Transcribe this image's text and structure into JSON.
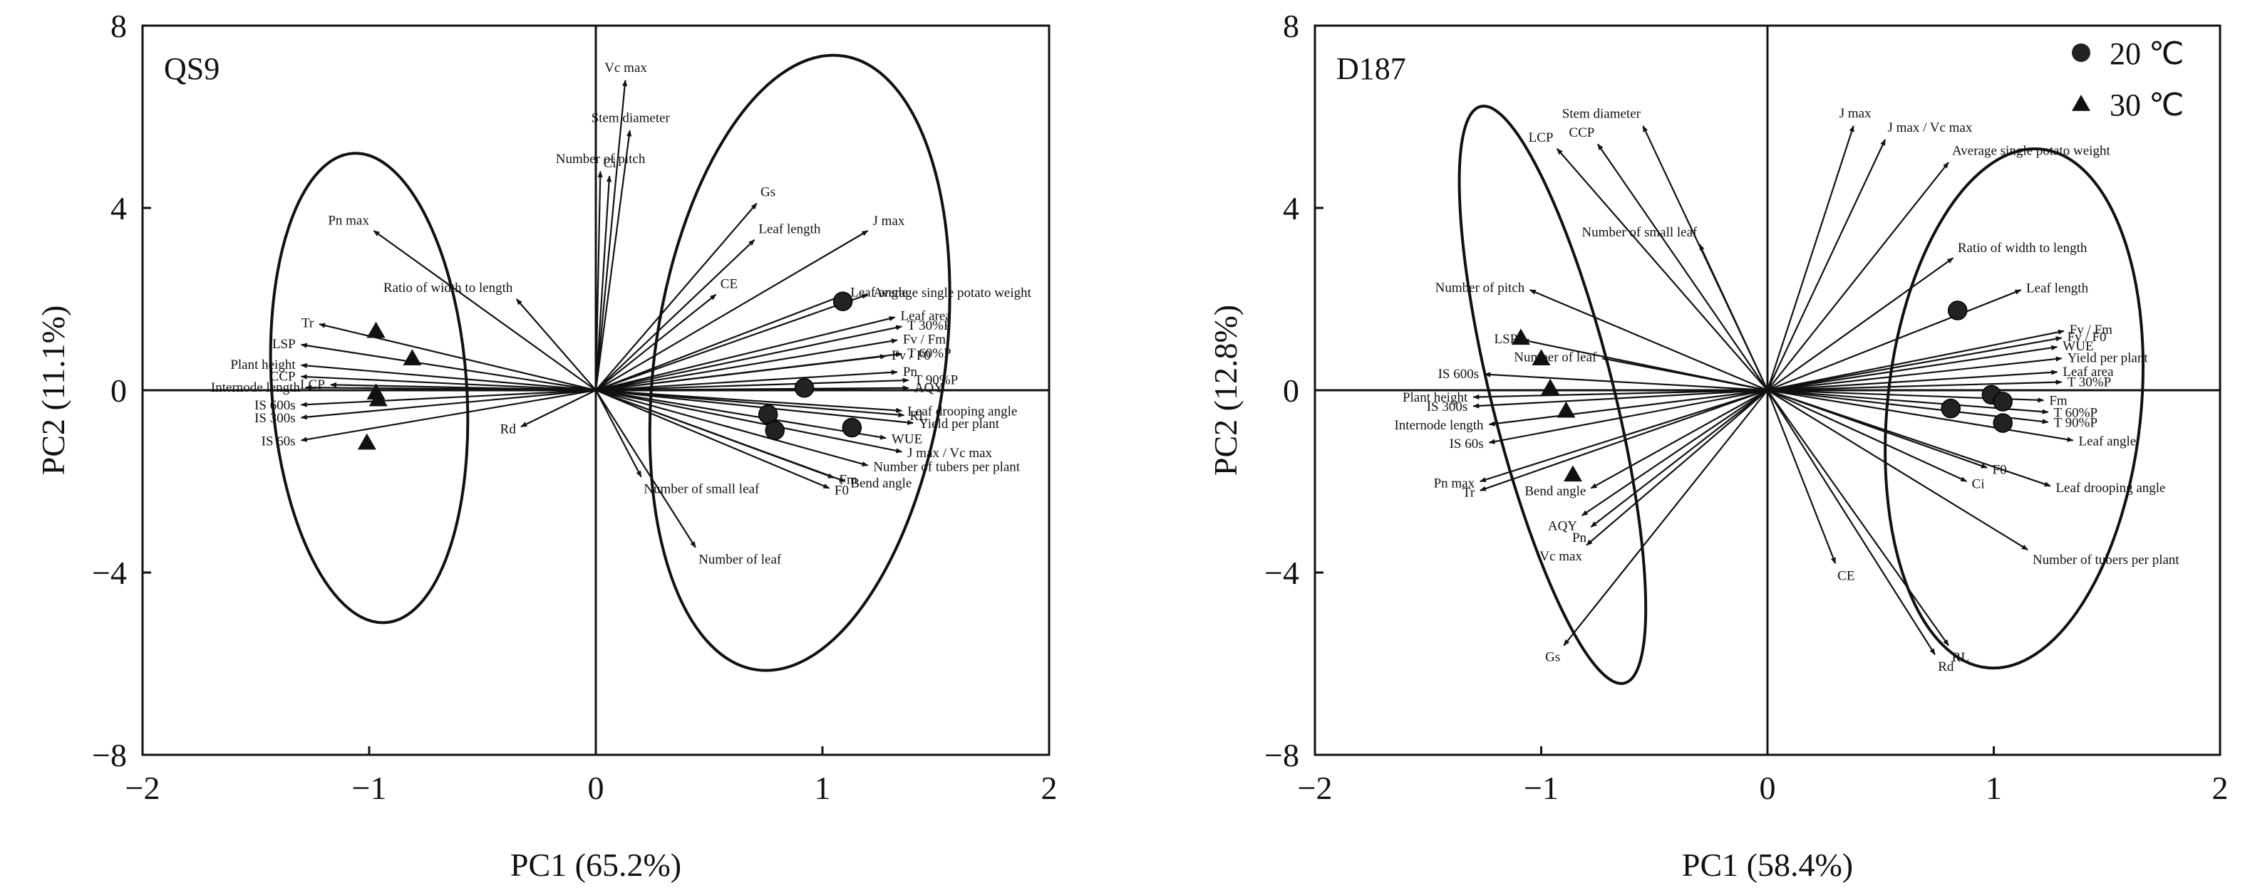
{
  "chart_data": [
    {
      "type": "scatter",
      "title": "QS9",
      "xlabel": "PC1 (65.2%)",
      "ylabel": "PC2 (11.1%)",
      "xlim": [
        -2,
        2
      ],
      "ylim": [
        -8,
        8
      ],
      "xticks": [
        -2,
        -1,
        0,
        1,
        2
      ],
      "yticks": [
        -8,
        -4,
        0,
        4,
        8
      ],
      "xtick_labels": [
        "−2",
        "−1",
        "0",
        "1",
        "2"
      ],
      "ytick_labels": [
        "−8",
        "−4",
        "0",
        "4",
        "8"
      ],
      "legend": null,
      "series": [
        {
          "name": "20 ℃",
          "marker": "circle",
          "points": [
            [
              1.09,
              1.95
            ],
            [
              0.92,
              0.05
            ],
            [
              0.76,
              -0.53
            ],
            [
              0.79,
              -0.88
            ],
            [
              1.13,
              -0.82
            ]
          ]
        },
        {
          "name": "30 ℃",
          "marker": "triangle",
          "points": [
            [
              -0.97,
              1.3
            ],
            [
              -0.81,
              0.7
            ],
            [
              -0.97,
              -0.05
            ],
            [
              -0.96,
              -0.2
            ],
            [
              -1.01,
              -1.15
            ]
          ]
        }
      ],
      "vectors": [
        {
          "label": "Vc max",
          "x": 0.13,
          "y": 6.8
        },
        {
          "label": "Stem diameter",
          "x": 0.15,
          "y": 5.7
        },
        {
          "label": "Ci",
          "x": 0.06,
          "y": 4.7
        },
        {
          "label": "Number of pitch",
          "x": 0.02,
          "y": 4.8
        },
        {
          "label": "Gs",
          "x": 0.71,
          "y": 4.1
        },
        {
          "label": "Leaf length",
          "x": 0.7,
          "y": 3.3
        },
        {
          "label": "J max",
          "x": 1.2,
          "y": 3.5
        },
        {
          "label": "CE",
          "x": 0.53,
          "y": 2.1
        },
        {
          "label": "Leaf angle",
          "x": 1.1,
          "y": 2.1
        },
        {
          "label": "Average single potato weight",
          "x": 1.2,
          "y": 2.1
        },
        {
          "label": "Leaf area",
          "x": 1.32,
          "y": 1.6
        },
        {
          "label": "T 30%P",
          "x": 1.35,
          "y": 1.4
        },
        {
          "label": "Fv / Fm",
          "x": 1.33,
          "y": 1.1
        },
        {
          "label": "Fv / F0",
          "x": 1.28,
          "y": 0.75
        },
        {
          "label": "T 60%P",
          "x": 1.35,
          "y": 0.8
        },
        {
          "label": "Pn",
          "x": 1.33,
          "y": 0.4
        },
        {
          "label": "T 90%P",
          "x": 1.38,
          "y": 0.22
        },
        {
          "label": "AQY",
          "x": 1.38,
          "y": 0.05
        },
        {
          "label": "Leaf drooping angle",
          "x": 1.35,
          "y": -0.45
        },
        {
          "label": "RL",
          "x": 1.36,
          "y": -0.55
        },
        {
          "label": "Yield per plant",
          "x": 1.4,
          "y": -0.72
        },
        {
          "label": "WUE",
          "x": 1.28,
          "y": -1.05
        },
        {
          "label": "J max / Vc max",
          "x": 1.35,
          "y": -1.35
        },
        {
          "label": "Number of tubers per plant",
          "x": 1.2,
          "y": -1.65
        },
        {
          "label": "Bend angle",
          "x": 1.1,
          "y": -2.0
        },
        {
          "label": "Fm",
          "x": 1.05,
          "y": -1.92
        },
        {
          "label": "F0",
          "x": 1.03,
          "y": -2.15
        },
        {
          "label": "Number of small leaf",
          "x": 0.2,
          "y": -1.9
        },
        {
          "label": "Number of leaf",
          "x": 0.44,
          "y": -3.45
        },
        {
          "label": "Rd",
          "x": -0.33,
          "y": -0.8
        },
        {
          "label": "Ratio of width to length",
          "x": -0.35,
          "y": 2.0
        },
        {
          "label": "Pn max",
          "x": -0.98,
          "y": 3.5
        },
        {
          "label": "Tr",
          "x": -1.22,
          "y": 1.45
        },
        {
          "label": "LSP",
          "x": -1.3,
          "y": 1.0
        },
        {
          "label": "Plant height",
          "x": -1.3,
          "y": 0.55
        },
        {
          "label": "CCP",
          "x": -1.3,
          "y": 0.3
        },
        {
          "label": "LCP",
          "x": -1.17,
          "y": 0.12
        },
        {
          "label": "Internode length",
          "x": -1.28,
          "y": 0.06
        },
        {
          "label": "IS 600s",
          "x": -1.3,
          "y": -0.32
        },
        {
          "label": "IS 300s",
          "x": -1.3,
          "y": -0.6
        },
        {
          "label": "IS 60s",
          "x": -1.3,
          "y": -1.1
        }
      ],
      "ellipses": [
        {
          "cx": -1.0,
          "cy": 0.05,
          "rx": 0.43,
          "ry": 5.16,
          "rot": -4
        },
        {
          "cx": 0.9,
          "cy": 0.6,
          "rx": 0.64,
          "ry": 6.8,
          "rot": 8
        }
      ]
    },
    {
      "type": "scatter",
      "title": "D187",
      "xlabel": "PC1 (58.4%)",
      "ylabel": "PC2 (12.8%)",
      "xlim": [
        -2,
        2
      ],
      "ylim": [
        -8,
        8
      ],
      "xticks": [
        -2,
        -1,
        0,
        1,
        2
      ],
      "yticks": [
        -8,
        -4,
        0,
        4,
        8
      ],
      "xtick_labels": [
        "−2",
        "−1",
        "0",
        "1",
        "2"
      ],
      "ytick_labels": [
        "−8",
        "−4",
        "0",
        "4",
        "8"
      ],
      "legend": "top-right",
      "series": [
        {
          "name": "20 ℃",
          "marker": "circle",
          "points": [
            [
              0.84,
              1.75
            ],
            [
              0.99,
              -0.1
            ],
            [
              1.04,
              -0.25
            ],
            [
              0.81,
              -0.4
            ],
            [
              1.04,
              -0.72
            ]
          ]
        },
        {
          "name": "30 ℃",
          "marker": "triangle",
          "points": [
            [
              -1.09,
              1.15
            ],
            [
              -1.0,
              0.7
            ],
            [
              -0.96,
              0.05
            ],
            [
              -0.89,
              -0.45
            ],
            [
              -0.86,
              -1.85
            ]
          ]
        }
      ],
      "vectors": [
        {
          "label": "J max",
          "x": 0.38,
          "y": 5.8
        },
        {
          "label": "J max / Vc max",
          "x": 0.52,
          "y": 5.5
        },
        {
          "label": "Average single potato weight",
          "x": 0.8,
          "y": 5.0
        },
        {
          "label": "Ratio of width to length",
          "x": 0.82,
          "y": 2.9
        },
        {
          "label": "Leaf length",
          "x": 1.12,
          "y": 2.2
        },
        {
          "label": "Fv / Fm",
          "x": 1.31,
          "y": 1.3
        },
        {
          "label": "Fv / F0",
          "x": 1.3,
          "y": 1.15
        },
        {
          "label": "WUE",
          "x": 1.28,
          "y": 0.95
        },
        {
          "label": "Yield per plant",
          "x": 1.3,
          "y": 0.7
        },
        {
          "label": "Leaf area",
          "x": 1.28,
          "y": 0.4
        },
        {
          "label": "T 30%P",
          "x": 1.3,
          "y": 0.18
        },
        {
          "label": "Fm",
          "x": 1.22,
          "y": -0.22
        },
        {
          "label": "T 60%P",
          "x": 1.24,
          "y": -0.48
        },
        {
          "label": "T 90%P",
          "x": 1.24,
          "y": -0.7
        },
        {
          "label": "Leaf angle",
          "x": 1.35,
          "y": -1.1
        },
        {
          "label": "F0",
          "x": 0.97,
          "y": -1.7
        },
        {
          "label": "Ci",
          "x": 0.88,
          "y": -2.0
        },
        {
          "label": "Leaf drooping angle",
          "x": 1.25,
          "y": -2.1
        },
        {
          "label": "Number of tubers per plant",
          "x": 1.15,
          "y": -3.5
        },
        {
          "label": "CE",
          "x": 0.3,
          "y": -3.8
        },
        {
          "label": "RL",
          "x": 0.8,
          "y": -5.6
        },
        {
          "label": "Rd",
          "x": 0.74,
          "y": -5.8
        },
        {
          "label": "Stem diameter",
          "x": -0.55,
          "y": 5.8
        },
        {
          "label": "CCP",
          "x": -0.75,
          "y": 5.4
        },
        {
          "label": "LCP",
          "x": -0.93,
          "y": 5.3
        },
        {
          "label": "Number of small leaf",
          "x": -0.3,
          "y": 3.2
        },
        {
          "label": "Number of pitch",
          "x": -1.05,
          "y": 2.2
        },
        {
          "label": "Number of leaf",
          "x": -0.73,
          "y": 0.7
        },
        {
          "label": "LSP",
          "x": -1.08,
          "y": 1.1
        },
        {
          "label": "IS 600s",
          "x": -1.25,
          "y": 0.35
        },
        {
          "label": "Plant height",
          "x": -1.3,
          "y": -0.15
        },
        {
          "label": "IS 300s",
          "x": -1.3,
          "y": -0.35
        },
        {
          "label": "Internode length",
          "x": -1.23,
          "y": -0.75
        },
        {
          "label": "IS 60s",
          "x": -1.23,
          "y": -1.15
        },
        {
          "label": "Pn max",
          "x": -1.27,
          "y": -2.0
        },
        {
          "label": "Tr",
          "x": -1.27,
          "y": -2.2
        },
        {
          "label": "Bend angle",
          "x": -0.78,
          "y": -2.15
        },
        {
          "label": "AQY",
          "x": -0.82,
          "y": -2.75
        },
        {
          "label": "Pn",
          "x": -0.78,
          "y": -3.0
        },
        {
          "label": "Vc max",
          "x": -0.8,
          "y": -3.4
        },
        {
          "label": "Gs",
          "x": -0.9,
          "y": -5.6
        }
      ],
      "ellipses": [
        {
          "cx": -0.95,
          "cy": -0.1,
          "rx": 0.27,
          "ry": 6.52,
          "rot": -14
        },
        {
          "cx": 1.09,
          "cy": -0.4,
          "rx": 0.56,
          "ry": 5.72,
          "rot": 6
        }
      ]
    }
  ]
}
